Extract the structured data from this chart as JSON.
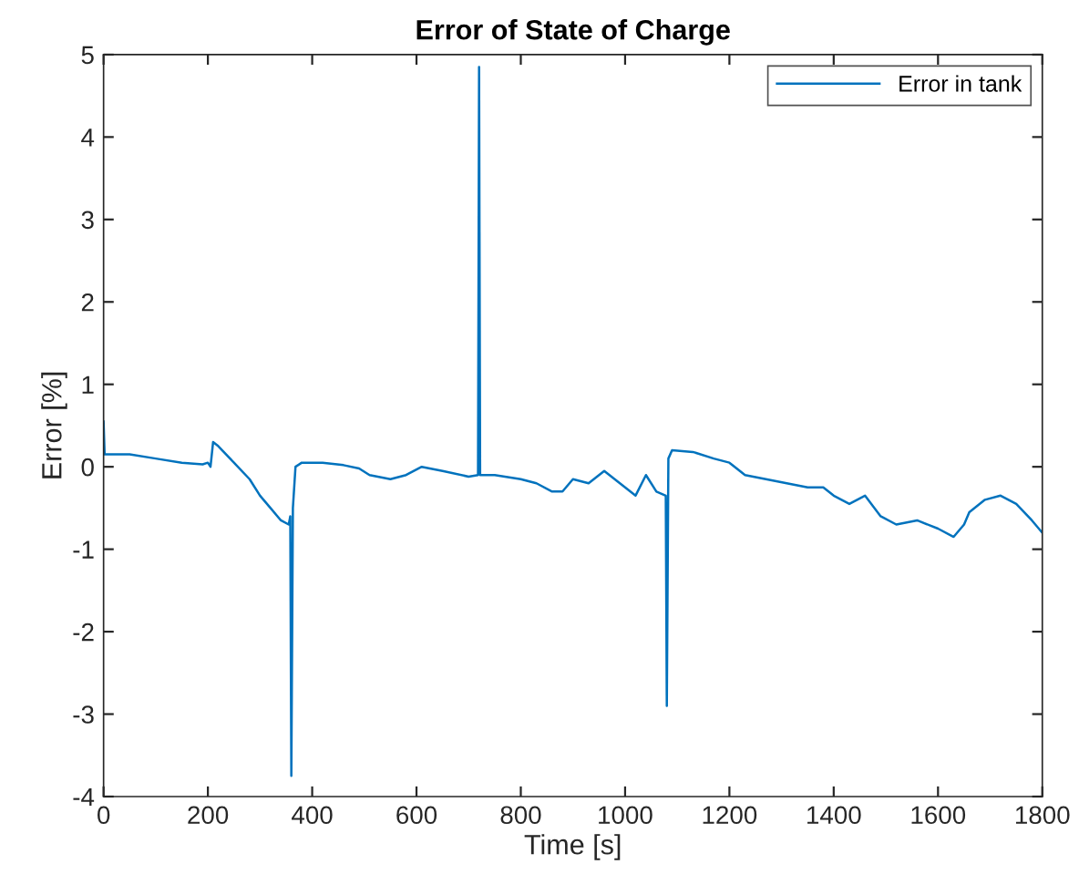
{
  "chart_data": {
    "type": "line",
    "title": "Error of State of Charge",
    "xlabel": "Time [s]",
    "ylabel": "Error [%]",
    "xlim": [
      0,
      1800
    ],
    "xticks": [
      0,
      200,
      400,
      600,
      800,
      1000,
      1200,
      1400,
      1600,
      1800
    ],
    "ylim": [
      -4,
      5
    ],
    "yticks": [
      -4,
      -3,
      -2,
      -1,
      0,
      1,
      2,
      3,
      4,
      5
    ],
    "grid": false,
    "legend": "top right",
    "marker": "none",
    "line_style": "solid",
    "series": [
      {
        "name": "Error in tank",
        "color": "#0072bd",
        "x": [
          0,
          2,
          50,
          100,
          150,
          190,
          200,
          205,
          210,
          220,
          250,
          280,
          300,
          320,
          340,
          355,
          358,
          360,
          363,
          368,
          380,
          420,
          460,
          490,
          510,
          550,
          580,
          610,
          650,
          700,
          718,
          720,
          722,
          750,
          800,
          830,
          860,
          880,
          900,
          930,
          960,
          990,
          1020,
          1040,
          1060,
          1078,
          1080,
          1083,
          1090,
          1130,
          1170,
          1200,
          1230,
          1270,
          1310,
          1350,
          1380,
          1400,
          1430,
          1460,
          1490,
          1520,
          1560,
          1600,
          1630,
          1650,
          1660,
          1690,
          1720,
          1750,
          1780,
          1800
        ],
        "values": [
          0.55,
          0.15,
          0.15,
          0.1,
          0.05,
          0.03,
          0.05,
          0.0,
          0.3,
          0.25,
          0.05,
          -0.15,
          -0.35,
          -0.5,
          -0.65,
          -0.7,
          -0.6,
          -3.75,
          -0.5,
          0.0,
          0.05,
          0.05,
          0.02,
          -0.02,
          -0.1,
          -0.15,
          -0.1,
          0.0,
          -0.05,
          -0.12,
          -0.1,
          4.85,
          -0.1,
          -0.1,
          -0.15,
          -0.2,
          -0.3,
          -0.3,
          -0.15,
          -0.2,
          -0.05,
          -0.2,
          -0.35,
          -0.1,
          -0.3,
          -0.35,
          -2.9,
          0.1,
          0.2,
          0.18,
          0.1,
          0.05,
          -0.1,
          -0.15,
          -0.2,
          -0.25,
          -0.25,
          -0.35,
          -0.45,
          -0.35,
          -0.6,
          -0.7,
          -0.65,
          -0.75,
          -0.85,
          -0.7,
          -0.55,
          -0.4,
          -0.35,
          -0.45,
          -0.65,
          -0.8
        ]
      }
    ]
  }
}
